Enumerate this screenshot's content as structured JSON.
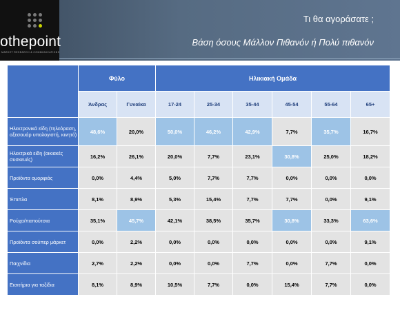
{
  "header": {
    "logo_text_prefix": "o",
    "logo_text_main": "thepoint",
    "logo_tagline": "MARKET RESEARCH & COMMUNICATIONS",
    "title": "Τι θα αγοράσατε ;",
    "subtitle": "Βάση όσους Μάλλον Πιθανόν ή Πολύ πιθανόν"
  },
  "table": {
    "group_gender": "Φύλο",
    "group_age": "Ηλικιακή Ομάδα",
    "columns": [
      "Άνδρας",
      "Γυναίκα",
      "17-24",
      "25-34",
      "35-44",
      "45-54",
      "55-64",
      "65+"
    ],
    "rows": [
      {
        "label": "Ηλεκτρονικά είδη (τηλεόραση, αξεσουάρ υπολογιστή, κινητό)",
        "values": [
          "48,6%",
          "20,0%",
          "50,0%",
          "46,2%",
          "42,9%",
          "7,7%",
          "35,7%",
          "16,7%"
        ],
        "highlight": [
          true,
          false,
          true,
          true,
          true,
          false,
          true,
          false
        ]
      },
      {
        "label": "Ηλεκτρικά είδη (οικιακές συσκευές)",
        "values": [
          "16,2%",
          "26,1%",
          "20,0%",
          "7,7%",
          "23,1%",
          "30,8%",
          "25,0%",
          "18,2%"
        ],
        "highlight": [
          false,
          false,
          false,
          false,
          false,
          true,
          false,
          false
        ]
      },
      {
        "label": "Προϊόντα ομορφιάς",
        "values": [
          "0,0%",
          "4,4%",
          "5,0%",
          "7,7%",
          "7,7%",
          "0,0%",
          "0,0%",
          "0,0%"
        ],
        "highlight": [
          false,
          false,
          false,
          false,
          false,
          false,
          false,
          false
        ]
      },
      {
        "label": "Έπιπλα",
        "values": [
          "8,1%",
          "8,9%",
          "5,3%",
          "15,4%",
          "7,7%",
          "7,7%",
          "0,0%",
          "9,1%"
        ],
        "highlight": [
          false,
          false,
          false,
          false,
          false,
          false,
          false,
          false
        ]
      },
      {
        "label": "Ρούχα/παπούτσια",
        "values": [
          "35,1%",
          "45,7%",
          "42,1%",
          "38,5%",
          "35,7%",
          "30,8%",
          "33,3%",
          "63,6%"
        ],
        "highlight": [
          false,
          true,
          false,
          false,
          false,
          true,
          false,
          true
        ]
      },
      {
        "label": "Προϊόντα σούπερ μάρκετ",
        "values": [
          "0,0%",
          "2,2%",
          "0,0%",
          "0,0%",
          "0,0%",
          "0,0%",
          "0,0%",
          "9,1%"
        ],
        "highlight": [
          false,
          false,
          false,
          false,
          false,
          false,
          false,
          false
        ]
      },
      {
        "label": "Παιχνίδια",
        "values": [
          "2,7%",
          "2,2%",
          "0,0%",
          "0,0%",
          "7,7%",
          "0,0%",
          "7,7%",
          "0,0%"
        ],
        "highlight": [
          false,
          false,
          false,
          false,
          false,
          false,
          false,
          false
        ]
      },
      {
        "label": "Εισιτήρια για ταξίδια",
        "values": [
          "8,1%",
          "8,9%",
          "10,5%",
          "7,7%",
          "0,0%",
          "15,4%",
          "7,7%",
          "0,0%"
        ],
        "highlight": [
          false,
          false,
          false,
          false,
          false,
          false,
          false,
          false
        ]
      }
    ]
  },
  "colors": {
    "header_blue": "#4472c4",
    "highlight_blue": "#9dc3e6",
    "cell_gray": "#e3e3e3"
  }
}
